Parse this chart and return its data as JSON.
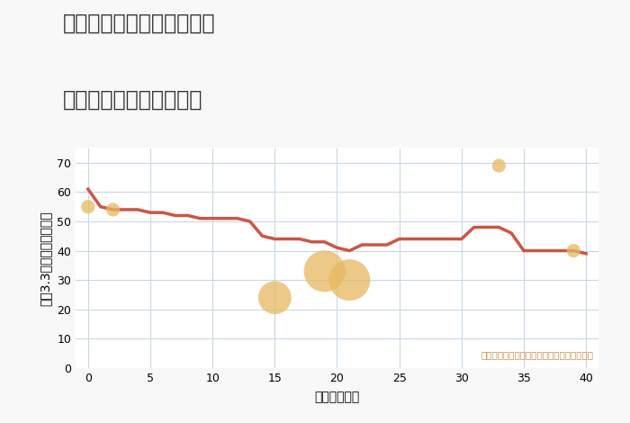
{
  "title_line1": "奈良県磯城郡三宅町屏風の",
  "title_line2": "築年数別中古戸建て価格",
  "xlabel": "築年数（年）",
  "ylabel": "坪（3.3㎡）単価（万円）",
  "background_color": "#f8f8f8",
  "plot_bg_color": "#ffffff",
  "line_color": "#cc5544",
  "line_x": [
    0,
    1,
    2,
    3,
    4,
    5,
    6,
    7,
    8,
    9,
    10,
    11,
    12,
    13,
    14,
    15,
    16,
    17,
    18,
    19,
    20,
    21,
    22,
    23,
    24,
    25,
    26,
    27,
    28,
    29,
    30,
    31,
    32,
    33,
    34,
    35,
    36,
    37,
    38,
    39,
    40
  ],
  "line_y": [
    61,
    55,
    54,
    54,
    54,
    53,
    53,
    52,
    52,
    51,
    51,
    51,
    51,
    50,
    45,
    44,
    44,
    44,
    43,
    43,
    41,
    40,
    42,
    42,
    42,
    44,
    44,
    44,
    44,
    44,
    44,
    48,
    48,
    48,
    46,
    40,
    40,
    40,
    40,
    40,
    39
  ],
  "scatter_x": [
    0,
    2,
    15,
    19,
    21,
    33,
    39
  ],
  "scatter_y": [
    55,
    54,
    24,
    33,
    30,
    69,
    40
  ],
  "scatter_size": [
    120,
    120,
    700,
    1100,
    1100,
    120,
    120
  ],
  "scatter_color": "#e8b860",
  "scatter_alpha": 0.75,
  "annotation_text": "円の大きさは、取引のあった物件面積を示す",
  "annotation_color": "#cc8844",
  "xlim": [
    -1,
    41
  ],
  "ylim": [
    0,
    75
  ],
  "xticks": [
    0,
    5,
    10,
    15,
    20,
    25,
    30,
    35,
    40
  ],
  "yticks": [
    0,
    10,
    20,
    30,
    40,
    50,
    60,
    70
  ],
  "grid_color": "#c8d8e8",
  "title_fontsize": 17,
  "axis_label_fontsize": 10,
  "tick_fontsize": 9,
  "title_color": "#333333"
}
